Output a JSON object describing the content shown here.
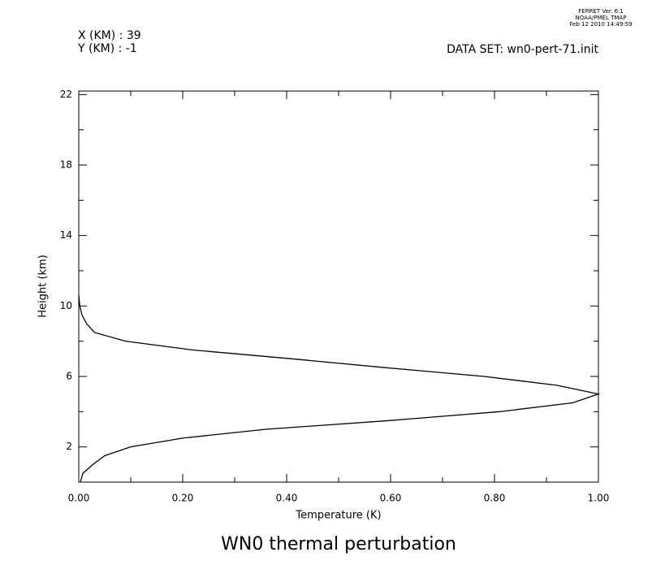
{
  "header": {
    "ferret_lines": [
      "FERRET Ver. 6.1",
      "NOAA/PMEL TMAP",
      "Feb 12 2010 14:49:59"
    ],
    "x_km": "X (KM) : 39",
    "y_km": "Y (KM) : -1",
    "dataset": "DATA SET: wn0-pert-71.init"
  },
  "chart_data": {
    "type": "line",
    "title": "WN0 thermal perturbation",
    "x_label": "Temperature (K)",
    "y_label": "Height (km)",
    "xlim": [
      0,
      1
    ],
    "ylim": [
      0,
      22.2
    ],
    "xticks": [
      {
        "value": 0,
        "label": "0.00"
      },
      {
        "value": 0.2,
        "label": "0.20"
      },
      {
        "value": 0.4,
        "label": "0.40"
      },
      {
        "value": 0.6,
        "label": "0.60"
      },
      {
        "value": 0.8,
        "label": "0.80"
      },
      {
        "value": 1,
        "label": "1.00"
      }
    ],
    "x_minor_ticks": [
      0.1,
      0.3,
      0.5,
      0.7,
      0.9
    ],
    "yticks": [
      2,
      6,
      10,
      14,
      18,
      22
    ],
    "y_minor_ticks": [
      4,
      8,
      12,
      16,
      20
    ],
    "color": "#000000",
    "x": [
      0.003,
      0.008,
      0.027,
      0.05,
      0.1,
      0.2,
      0.36,
      0.6,
      0.81,
      0.95,
      1.0,
      0.92,
      0.78,
      0.59,
      0.41,
      0.22,
      0.09,
      0.03,
      0.015,
      0.006,
      0.002,
      0.0
    ],
    "y": [
      0.0,
      0.5,
      1.0,
      1.5,
      2.0,
      2.5,
      3.0,
      3.5,
      4.0,
      4.5,
      5.0,
      5.5,
      6.0,
      6.5,
      7.0,
      7.5,
      8.0,
      8.5,
      9.0,
      9.5,
      10.0,
      10.6
    ]
  }
}
